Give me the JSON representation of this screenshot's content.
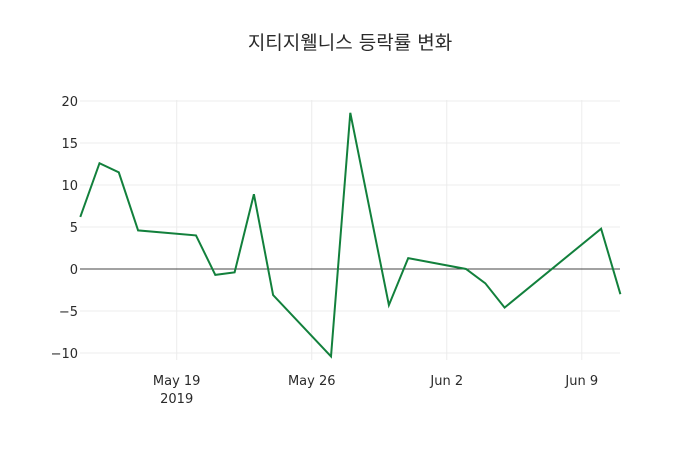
{
  "title": "지티지웰니스 등락률 변화",
  "chart_data": {
    "type": "line",
    "title": "지티지웰니스 등락률 변화",
    "xlabel": "",
    "ylabel": "",
    "x": [
      "2019-05-14",
      "2019-05-15",
      "2019-05-16",
      "2019-05-17",
      "2019-05-20",
      "2019-05-21",
      "2019-05-22",
      "2019-05-23",
      "2019-05-24",
      "2019-05-27",
      "2019-05-28",
      "2019-05-30",
      "2019-05-31",
      "2019-06-03",
      "2019-06-04",
      "2019-06-05",
      "2019-06-10",
      "2019-06-11"
    ],
    "series": [
      {
        "name": "등락률",
        "color": "#12803c",
        "values": [
          6.2,
          12.6,
          11.5,
          4.6,
          4.0,
          -0.7,
          -0.4,
          8.9,
          -3.1,
          -10.4,
          18.6,
          -4.3,
          1.3,
          0.0,
          -1.7,
          -4.6,
          4.8,
          -3.0
        ]
      }
    ],
    "ylim": [
      -12,
      20.5
    ],
    "yticks": [
      20,
      15,
      10,
      5,
      0,
      -5,
      -10
    ],
    "ytick_labels": [
      "20",
      "15",
      "10",
      "5",
      "0",
      "−5",
      "−10"
    ],
    "xticks": [
      {
        "date": "2019-05-19",
        "label": "May 19",
        "sublabel": "2019"
      },
      {
        "date": "2019-05-26",
        "label": "May 26",
        "sublabel": ""
      },
      {
        "date": "2019-06-02",
        "label": "Jun 2",
        "sublabel": ""
      },
      {
        "date": "2019-06-09",
        "label": "Jun 9",
        "sublabel": ""
      }
    ],
    "grid": true,
    "zeroline": true,
    "legend": false
  }
}
